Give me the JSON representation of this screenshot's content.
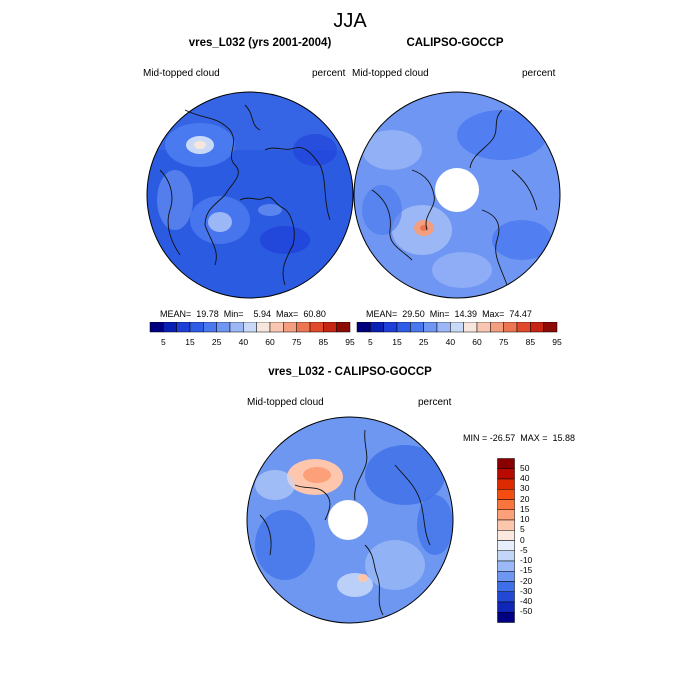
{
  "title": "JJA",
  "panels": [
    {
      "title": "vres_L032 (yrs 2001-2004)",
      "left_label": "Mid-topped cloud",
      "right_label": "percent",
      "stats": "MEAN=  19.78  Min=    5.94  Max=  60.80",
      "colorbar_ticks": [
        "5",
        "15",
        "25",
        "40",
        "60",
        "75",
        "85",
        "95"
      ]
    },
    {
      "title": "CALIPSO-GOCCP",
      "left_label": "Mid-topped cloud",
      "right_label": "percent",
      "stats": "MEAN=  29.50  Min=  14.39  Max=  74.47",
      "colorbar_ticks": [
        "5",
        "15",
        "25",
        "40",
        "60",
        "75",
        "85",
        "95"
      ]
    },
    {
      "title": "vres_L032 - CALIPSO-GOCCP",
      "left_label": "Mid-topped cloud",
      "right_label": "percent",
      "stats": "MIN = -26.57  MAX =  15.88",
      "colorbar_ticks": [
        "50",
        "40",
        "30",
        "20",
        "15",
        "10",
        "5",
        "0",
        "-5",
        "-10",
        "-15",
        "-20",
        "-30",
        "-40",
        "-50"
      ]
    }
  ],
  "colors": {
    "abs_scale": [
      "#00007f",
      "#0a1fb3",
      "#1e3fd8",
      "#2e5ce6",
      "#4a78ef",
      "#6f96f3",
      "#9bb7f6",
      "#c9daf8",
      "#f6e6dc",
      "#f9c7b1",
      "#f49e80",
      "#ec7552",
      "#e04a2a",
      "#c62613",
      "#8c0b05"
    ],
    "diff_scale": [
      "#8a0000",
      "#b70a00",
      "#de2a00",
      "#f44d10",
      "#f9753d",
      "#fca07a",
      "#fdc6ad",
      "#fbe8de",
      "#e6effb",
      "#c3d6fa",
      "#9ab9f6",
      "#6d97f0",
      "#3f6fe8",
      "#2348d6",
      "#1026b8",
      "#000080"
    ],
    "map_base": "#2b5be0",
    "coast": "#111111"
  }
}
